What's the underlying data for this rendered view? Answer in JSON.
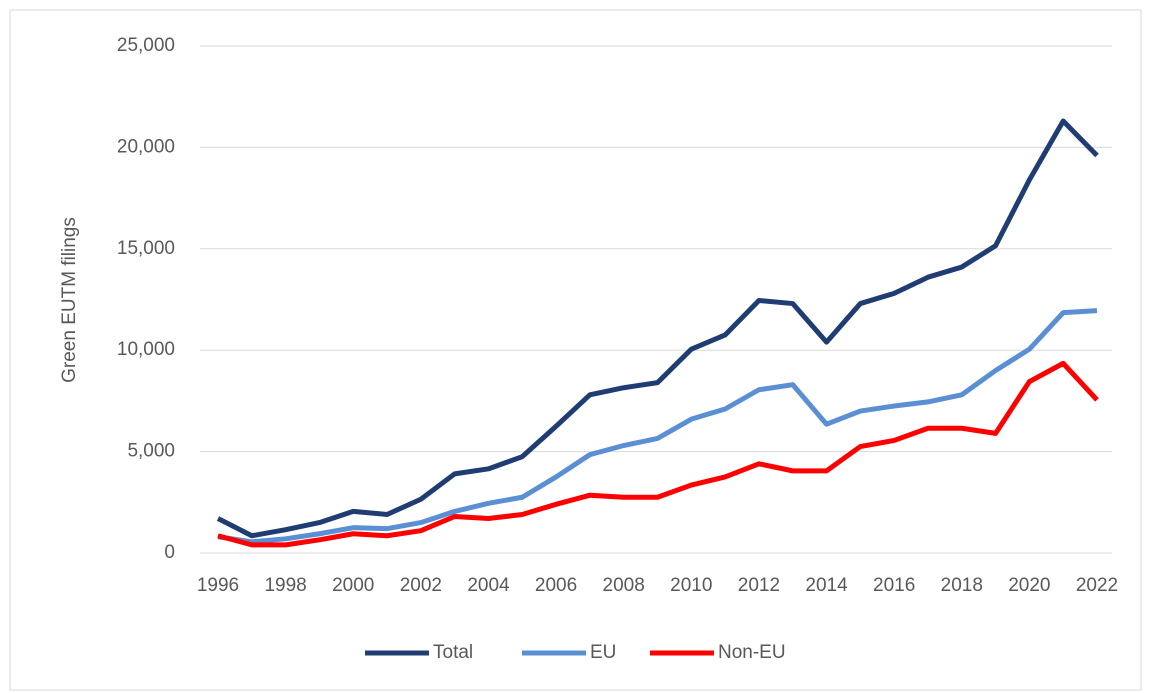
{
  "chart_data": {
    "type": "line",
    "y_label": "Green EUTM filings",
    "x": [
      1996,
      1997,
      1998,
      1999,
      2000,
      2001,
      2002,
      2003,
      2004,
      2005,
      2006,
      2007,
      2008,
      2009,
      2010,
      2011,
      2012,
      2013,
      2014,
      2015,
      2016,
      2017,
      2018,
      2019,
      2020,
      2021,
      2022
    ],
    "xlim": [
      1996,
      2022
    ],
    "xticks": [
      1996,
      1998,
      2000,
      2002,
      2004,
      2006,
      2008,
      2010,
      2012,
      2014,
      2016,
      2018,
      2020,
      2022
    ],
    "ylim": [
      0,
      25000
    ],
    "yticks": [
      0,
      {
        "value": 5000,
        "label": "5,000"
      },
      {
        "value": 10000,
        "label": "10,000"
      },
      {
        "value": 15000,
        "label": "15,000"
      },
      {
        "value": 20000,
        "label": "20,000"
      },
      {
        "value": 25000,
        "label": "25,000"
      }
    ],
    "grid": true,
    "legend": "bottom",
    "series": [
      {
        "name": "Total",
        "color": "#1f3d73",
        "values": [
          1700,
          850,
          1150,
          1500,
          2050,
          1900,
          2650,
          3900,
          4150,
          4750,
          6250,
          7800,
          8150,
          8400,
          10050,
          10750,
          12450,
          12300,
          10400,
          12300,
          12800,
          13600,
          14100,
          15150,
          18400,
          21300,
          19600
        ]
      },
      {
        "name": "EU",
        "color": "#5b8fd4",
        "values": [
          800,
          550,
          700,
          950,
          1250,
          1200,
          1500,
          2050,
          2450,
          2750,
          3750,
          4850,
          5300,
          5650,
          6600,
          7100,
          8050,
          8300,
          6350,
          7000,
          7250,
          7450,
          7800,
          9000,
          10050,
          11850,
          11950
        ]
      },
      {
        "name": "Non-EU",
        "color": "#ff0000",
        "values": [
          850,
          400,
          400,
          650,
          950,
          850,
          1100,
          1800,
          1700,
          1900,
          2400,
          2850,
          2750,
          2750,
          3350,
          3750,
          4400,
          4050,
          4050,
          5250,
          5550,
          6150,
          6150,
          5900,
          8450,
          9350,
          7550
        ]
      }
    ]
  }
}
